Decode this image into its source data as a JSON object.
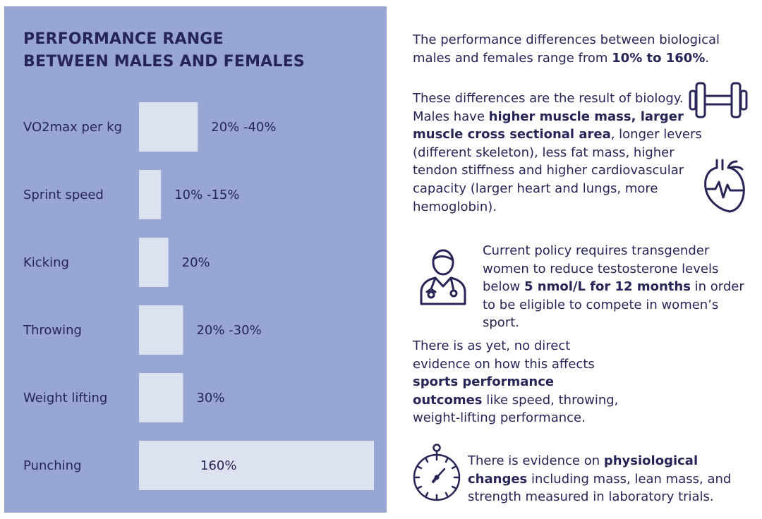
{
  "panel": {
    "title_line1": "PERFORMANCE RANGE",
    "title_line2": "BETWEEN MALES AND FEMALES"
  },
  "chart_data": {
    "type": "bar",
    "orientation": "horizontal",
    "title": "PERFORMANCE RANGE BETWEEN MALES AND FEMALES",
    "categories": [
      "VO2max per kg",
      "Sprint speed",
      "Kicking",
      "Throwing",
      "Weight lifting",
      "Punching"
    ],
    "values": [
      40,
      15,
      20,
      30,
      30,
      160
    ],
    "value_labels": [
      "20% -40%",
      "10% -15%",
      "20%",
      "20% -30%",
      "30%",
      "160%"
    ],
    "unit": "%",
    "xlim": [
      0,
      160
    ],
    "grid": false,
    "legend": "none",
    "colors": {
      "panel": "#97a6d3",
      "bar": "#dde2f1",
      "text": "#272556"
    }
  },
  "right": {
    "p1": {
      "a": "The performance differences between biological males and females range from ",
      "b": "10% to 160%",
      "c": "."
    },
    "p2": {
      "a": "These differences are the result of biology. Males have ",
      "b": "higher muscle mass, larger muscle cross sectional area",
      "c": ", longer levers (different skeleton), less fat mass, higher tendon stiffness and higher cardiovascular capacity (larger heart and lungs, more hemoglobin)."
    },
    "p3": {
      "a": "Current policy requires transgender women to reduce testosterone levels below ",
      "b": "5 nmol/L for 12 months",
      "c": " in order to be eligible to compete in women’s sport."
    },
    "p4": {
      "a": "There is as yet, no direct evidence on how this affects ",
      "b": "sports performance outcomes",
      "c": " like speed, throwing, weight-lifting performance."
    },
    "p5": {
      "a": "There is evidence on ",
      "b": "physiological changes",
      "c": " including mass, lean mass, and strength measured in laboratory trials."
    }
  },
  "icons": [
    "dumbbell-icon",
    "heart-icon",
    "doctor-icon",
    "stopwatch-icon"
  ]
}
